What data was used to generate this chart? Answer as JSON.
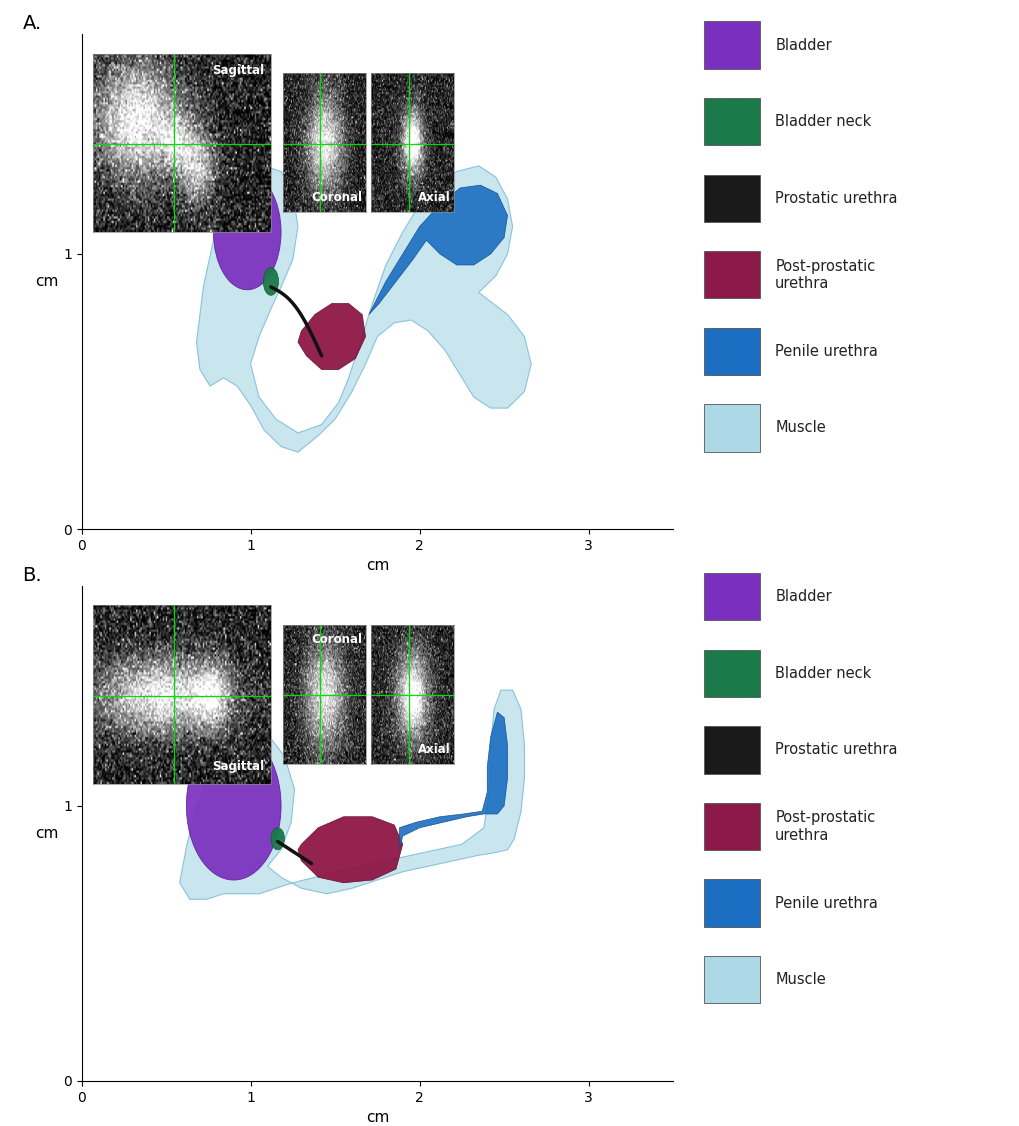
{
  "figure_width": 10.2,
  "figure_height": 11.26,
  "dpi": 100,
  "background_color": "#ffffff",
  "panel_A_label": "A.",
  "panel_B_label": "B.",
  "legend_items": [
    {
      "label": "Bladder",
      "color": "#7B2FBE"
    },
    {
      "label": "Bladder neck",
      "color": "#1A7A4A"
    },
    {
      "label": "Prostatic urethra",
      "color": "#1A1A1A"
    },
    {
      "label": "Post-prostatic\nurethra",
      "color": "#8B1A4A"
    },
    {
      "label": "Penile urethra",
      "color": "#1B6EC2"
    },
    {
      "label": "Muscle",
      "color": "#ADD8E6"
    }
  ],
  "xlabel": "cm",
  "ylabel": "cm",
  "xlim": [
    0,
    3.5
  ],
  "ylim": [
    0,
    1.8
  ],
  "xticks": [
    0,
    1,
    2,
    3
  ],
  "yticks": [
    0,
    1
  ],
  "legend_text_color": "#222222",
  "legend_fontsize": 10.5,
  "axis_label_fontsize": 11,
  "tick_fontsize": 10,
  "panel_label_fontsize": 14,
  "muscle_color": "#ADD8E6",
  "muscle_edge": "#5AABCC",
  "bladder_color": "#7B2FBE",
  "bladder_edge": "#5A1F9A",
  "bladder_neck_color": "#1A7A4A",
  "prostatic_color": "#111111",
  "post_prostatic_color": "#8B1040",
  "penile_color": "#1B6EC2",
  "penile_edge": "#0A4A8A"
}
